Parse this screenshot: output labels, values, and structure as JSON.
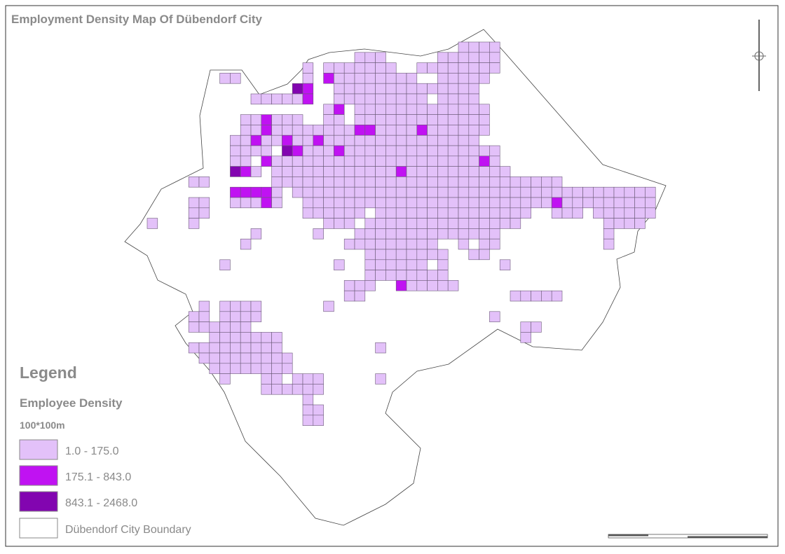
{
  "title": "Employment Density Map Of Dübendorf City",
  "legend": {
    "title": "Legend",
    "subtitle": "Employee Density",
    "unit": "100*100m",
    "classes": [
      {
        "label": "1.0 - 175.0",
        "color": "#e3c1f9"
      },
      {
        "label": "175.1 - 843.0",
        "color": "#c012f2"
      },
      {
        "label": "843.1 - 2468.0",
        "color": "#8205b0"
      }
    ],
    "boundary": {
      "label": "Dübendorf City Boundary"
    }
  }
}
